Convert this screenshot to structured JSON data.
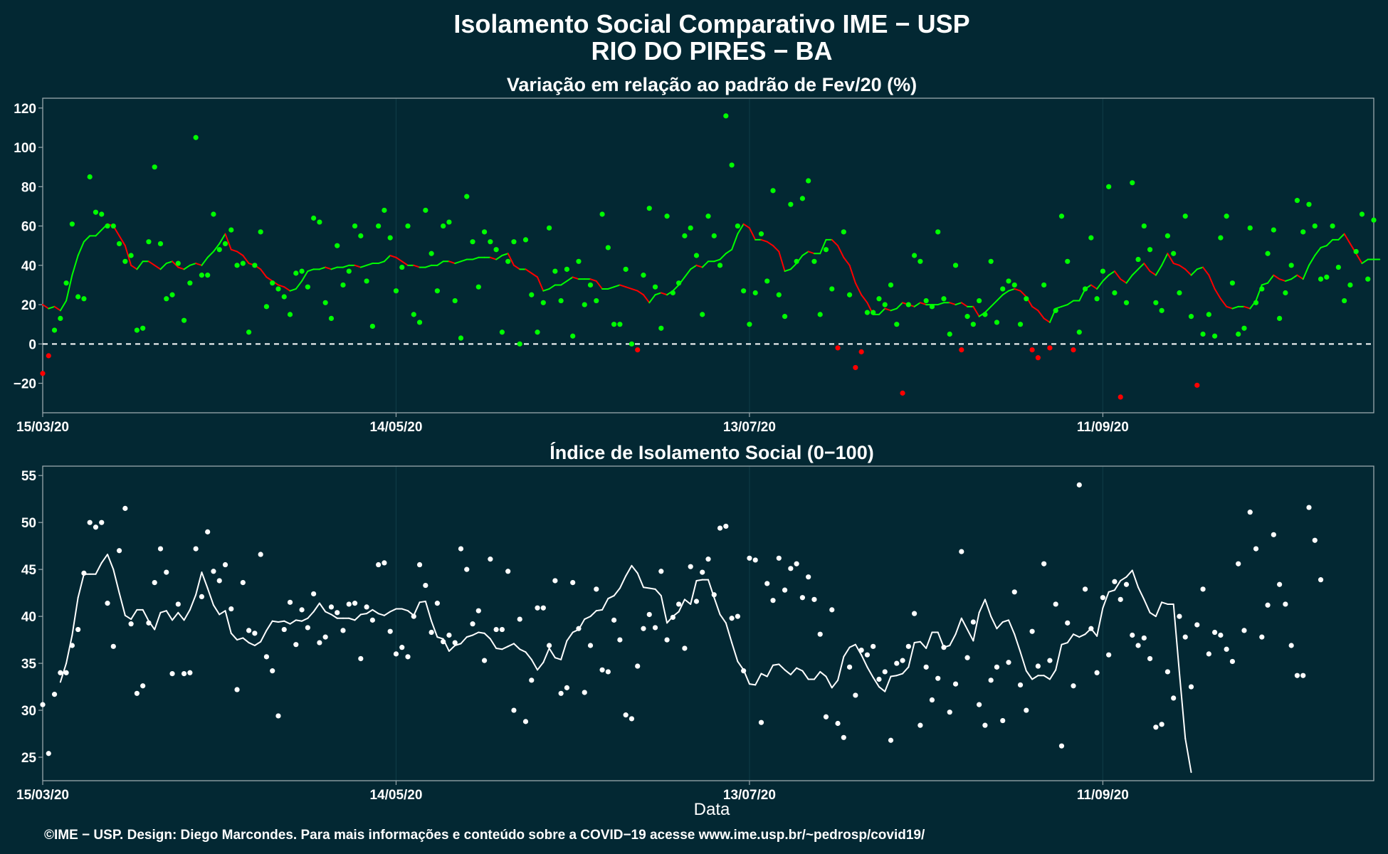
{
  "title_line1": "Isolamento Social Comparativo IME − USP",
  "title_line2": "RIO DO PIRES − BA",
  "xlabel": "Data",
  "caption": "©IME − USP. Design: Diego Marcondes. Para mais informações e conteúdo sobre a COVID−19 acesse www.ime.usp.br/~pedrosp/covid19/",
  "colors": {
    "background": "#032833",
    "panel_border": "#9aa8ad",
    "grid": "#0f3a45",
    "positive": "#00ff00",
    "negative": "#ff0000",
    "index": "#ffffff",
    "zero_line": "#ffffff"
  },
  "chart_data": [
    {
      "type": "scatter",
      "title": "Variação em relação ao padrão de Fev/20 (%)",
      "x_start": "15/03/20",
      "x_ticks": [
        "15/03/20",
        "14/05/20",
        "13/07/20",
        "11/09/20"
      ],
      "x_tick_day": [
        0,
        60,
        120,
        180
      ],
      "xlim_day": [
        0,
        226
      ],
      "ylim": [
        -35,
        125
      ],
      "y_ticks": [
        -20,
        0,
        20,
        40,
        60,
        80,
        100,
        120
      ],
      "y_tick_labels": [
        "−20",
        "0",
        "20",
        "40",
        "60",
        "80",
        "100",
        "120"
      ],
      "reference_line": 0,
      "grid": true,
      "series": [
        {
          "kind": "points",
          "values": [
            -15,
            -6,
            7,
            13,
            31,
            61,
            24,
            23,
            85,
            67,
            66,
            60,
            60,
            51,
            42,
            45,
            7,
            8,
            52,
            90,
            51,
            23,
            25,
            41,
            12,
            31,
            105,
            35,
            35,
            66,
            48,
            51,
            58,
            40,
            41,
            6,
            40,
            57,
            19,
            31,
            28,
            24,
            15,
            36,
            37,
            29,
            64,
            62,
            21,
            13,
            50,
            30,
            37,
            60,
            55,
            32,
            9,
            60,
            68,
            54,
            27,
            39,
            60,
            15,
            11,
            68,
            46,
            27,
            60,
            62,
            22,
            3,
            75,
            52,
            29,
            57,
            52,
            48,
            6,
            42,
            52,
            0,
            53,
            25,
            6,
            21,
            59,
            37,
            22,
            38,
            4,
            42,
            20,
            30,
            22,
            66,
            49,
            10,
            10,
            38,
            0,
            -3,
            35,
            69,
            29,
            8,
            65,
            26,
            31,
            55,
            59,
            45,
            15,
            65,
            55,
            40,
            116,
            91,
            60,
            27,
            10,
            26,
            56,
            32,
            78,
            25,
            14,
            71,
            42,
            74,
            83,
            42,
            15,
            48,
            28,
            -2,
            57,
            25,
            -12,
            -4,
            16,
            16,
            23,
            20,
            30,
            10,
            -25,
            20,
            45,
            42,
            22,
            19,
            57,
            23,
            5,
            40,
            -3,
            14,
            10,
            22,
            15,
            42,
            11,
            28,
            32,
            30,
            10,
            23,
            -3,
            -7,
            30,
            -2,
            17,
            65,
            42,
            -3,
            6,
            28,
            54,
            23,
            37,
            80,
            26,
            -27,
            21,
            82,
            43,
            60,
            48,
            21,
            17,
            55,
            46,
            26,
            65,
            14,
            -21,
            5,
            15,
            4,
            54,
            65,
            31,
            5,
            8,
            59,
            21,
            28,
            46,
            58,
            13,
            26,
            40,
            73,
            57,
            71,
            60,
            33,
            34,
            60,
            39,
            22,
            30,
            47,
            66,
            33,
            63
          ]
        },
        {
          "kind": "moving_average",
          "start_day": 0,
          "values": [
            20,
            18,
            19,
            17,
            22,
            35,
            45,
            52,
            55,
            55,
            58,
            61,
            60,
            55,
            50,
            40,
            38,
            42,
            42,
            40,
            38,
            41,
            42,
            39,
            38,
            40,
            41,
            40,
            44,
            47,
            51,
            56,
            48,
            47,
            45,
            41,
            40,
            38,
            34,
            32,
            30,
            29,
            27,
            28,
            32,
            37,
            38,
            38,
            39,
            38,
            39,
            39,
            40,
            40,
            39,
            40,
            41,
            41,
            42,
            45,
            44,
            42,
            40,
            40,
            39,
            39,
            40,
            40,
            42,
            42,
            41,
            42,
            43,
            43,
            44,
            44,
            44,
            43,
            45,
            46,
            40,
            38,
            38,
            36,
            34,
            27,
            28,
            30,
            30,
            32,
            34,
            33,
            33,
            33,
            32,
            28,
            28,
            29,
            30,
            29,
            28,
            27,
            25,
            21,
            25,
            26,
            25,
            27,
            30,
            34,
            38,
            40,
            39,
            42,
            42,
            43,
            46,
            48,
            56,
            61,
            59,
            53,
            53,
            52,
            50,
            47,
            37,
            38,
            41,
            45,
            47,
            46,
            46,
            53,
            53,
            50,
            44,
            40,
            31,
            25,
            21,
            15,
            15,
            18,
            17,
            18,
            21,
            20,
            19,
            21,
            20,
            20,
            20,
            21,
            21,
            20,
            21,
            19,
            19,
            14,
            16,
            19,
            22,
            25,
            27,
            28,
            27,
            24,
            19,
            17,
            13,
            11,
            18,
            19,
            20,
            22,
            22,
            28,
            30,
            28,
            32,
            35,
            37,
            33,
            31,
            35,
            38,
            41,
            37,
            35,
            40,
            46,
            41,
            40,
            38,
            35,
            38,
            39,
            35,
            28,
            23,
            19,
            18,
            19,
            19,
            18,
            22,
            30,
            31,
            35,
            33,
            32,
            33,
            35,
            33,
            40,
            45,
            49,
            50,
            53,
            53,
            56,
            51,
            46,
            41,
            43,
            43,
            43
          ]
        }
      ]
    },
    {
      "type": "scatter",
      "title": "Índice de Isolamento Social (0−100)",
      "x_start": "15/03/20",
      "x_ticks": [
        "15/03/20",
        "14/05/20",
        "13/07/20",
        "11/09/20"
      ],
      "x_tick_day": [
        0,
        60,
        120,
        180
      ],
      "xlim_day": [
        0,
        226
      ],
      "ylim": [
        22.5,
        56
      ],
      "y_ticks": [
        25,
        30,
        35,
        40,
        45,
        50,
        55
      ],
      "y_tick_labels": [
        "25",
        "30",
        "35",
        "40",
        "45",
        "50",
        "55"
      ],
      "grid": true,
      "series": [
        {
          "kind": "points",
          "values": [
            30.6,
            25.4,
            31.7,
            34,
            34,
            36.9,
            38.6,
            44.6,
            50,
            49.5,
            50,
            41.4,
            36.8,
            47,
            51.5,
            39.2,
            31.8,
            32.6,
            39.3,
            43.6,
            47.2,
            44.7,
            33.9,
            41.3,
            33.9,
            34,
            47.2,
            42.1,
            49,
            44.8,
            43.8,
            45.5,
            40.8,
            32.2,
            43.6,
            38.5,
            38.2,
            46.6,
            35.7,
            34.2,
            29.4,
            38.6,
            41.5,
            37,
            40.7,
            38.8,
            42.4,
            37.2,
            37.8,
            41,
            40.4,
            38.5,
            41.3,
            41.4,
            35.5,
            41,
            39.6,
            45.5,
            45.7,
            38.4,
            36,
            36.7,
            35.7,
            40,
            45.5,
            43.3,
            38.3,
            41.4,
            37.3,
            38,
            37.2,
            47.2,
            45,
            39.2,
            40.6,
            35.3,
            46.1,
            38.6,
            38.6,
            44.8,
            30,
            39.7,
            28.8,
            33.2,
            40.9,
            40.9,
            36.9,
            43.8,
            31.8,
            32.4,
            43.6,
            38.7,
            31.9,
            36.9,
            42.9,
            34.3,
            34.1,
            39.6,
            37.5,
            29.5,
            29.1,
            34.7,
            38.7,
            40.2,
            38.8,
            44.8,
            37.5,
            39.9,
            41.3,
            36.6,
            45.3,
            41.6,
            44.7,
            46.1,
            42.3,
            49.4,
            49.6,
            39.8,
            40,
            34.2,
            46.2,
            46,
            28.7,
            43.5,
            41.7,
            46.2,
            42.8,
            45.1,
            45.6,
            42,
            44.2,
            41.8,
            38.1,
            29.3,
            40.7,
            28.6,
            27.1,
            34.6,
            31.6,
            36.4,
            35.9,
            36.8,
            33.3,
            34.1,
            26.8,
            35,
            35.3,
            36.8,
            40.3,
            28.4,
            34.6,
            31.1,
            33.4,
            36.7,
            29.8,
            32.8,
            46.9,
            35.6,
            39.4,
            30.6,
            28.4,
            33.2,
            34.6,
            28.9,
            35.1,
            42.6,
            32.7,
            30,
            38.4,
            34.7,
            45.6,
            35.3,
            41.3,
            26.2,
            39.3,
            32.6,
            54,
            42.9,
            38.7,
            34,
            42,
            35.9,
            43.7,
            41.8,
            43.4,
            38,
            36.9,
            37.7,
            35.5,
            28.2,
            28.5,
            34.1,
            31.3,
            40,
            37.8,
            32.5,
            39.1,
            42.9,
            36,
            38.3,
            38,
            36.5,
            35.2,
            45.6,
            38.5,
            51.1,
            47.2,
            37.8,
            41.2,
            48.7,
            43.4,
            41.3,
            36.9,
            33.7,
            33.7,
            51.6,
            48.1,
            43.9
          ]
        },
        {
          "kind": "moving_average",
          "start_day": 3,
          "values": [
            33,
            35,
            38,
            42,
            44.5,
            44.5,
            44.5,
            45.7,
            46.6,
            45,
            42.5,
            40.1,
            39.7,
            40.7,
            40.7,
            39.5,
            38.6,
            40.4,
            40.6,
            39.6,
            40.4,
            39.6,
            40.7,
            42.3,
            44.7,
            43,
            41.2,
            40.2,
            40.6,
            38.2,
            37.5,
            37.7,
            37.2,
            36.9,
            37.3,
            38.5,
            39.5,
            39.4,
            39.5,
            39.2,
            39.6,
            39.5,
            39.8,
            40.5,
            41.4,
            40.5,
            40.2,
            39.8,
            39.8,
            39.8,
            39.6,
            40.2,
            40.3,
            40.7,
            40.3,
            40.1,
            40.5,
            40.8,
            40.8,
            40.6,
            40.1,
            41.5,
            41.6,
            39.5,
            37.8,
            37.6,
            36.3,
            36.9,
            37.1,
            37.8,
            38,
            38.3,
            38.2,
            37.6,
            36.6,
            36.5,
            36.8,
            37.1,
            36.5,
            36.2,
            35.4,
            34.3,
            35.1,
            36.6,
            35.6,
            35.4,
            37.4,
            38.3,
            38.6,
            39.7,
            40,
            40.6,
            40.7,
            41.9,
            42.2,
            43,
            44.3,
            45.4,
            44.6,
            43.1,
            43,
            42.9,
            42.2,
            39.3,
            40,
            40.5,
            41.8,
            41.3,
            43.8,
            43.9,
            43.9,
            42,
            40.2,
            39.3,
            37.2,
            35.2,
            34.3,
            32.8,
            32.7,
            33.9,
            33.6,
            34.8,
            34.9,
            34.3,
            33.8,
            34.5,
            34.2,
            33.3,
            33.3,
            34.1,
            33.6,
            32.4,
            33.2,
            35.7,
            36.7,
            37,
            35.9,
            34.6,
            33.5,
            32.5,
            32,
            33.6,
            33.7,
            33.9,
            34.6,
            37.2,
            37.3,
            36.6,
            38.3,
            38.3,
            36.7,
            36.9,
            38.1,
            39.8,
            38.6,
            37.4,
            40.4,
            41.8,
            40,
            38.7,
            39.4,
            39.6,
            38.1,
            36.2,
            34.2,
            33.3,
            33.7,
            33.7,
            33.3,
            34.3,
            37,
            37.2,
            38.1,
            37.8,
            38.1,
            38.7,
            37.9,
            40.9,
            42.6,
            42.8,
            43.8,
            44.2,
            44.9,
            43.1,
            41.8,
            40.4,
            40,
            41.5,
            41.3,
            41.3,
            34,
            27,
            23.4
          ]
        }
      ]
    }
  ]
}
